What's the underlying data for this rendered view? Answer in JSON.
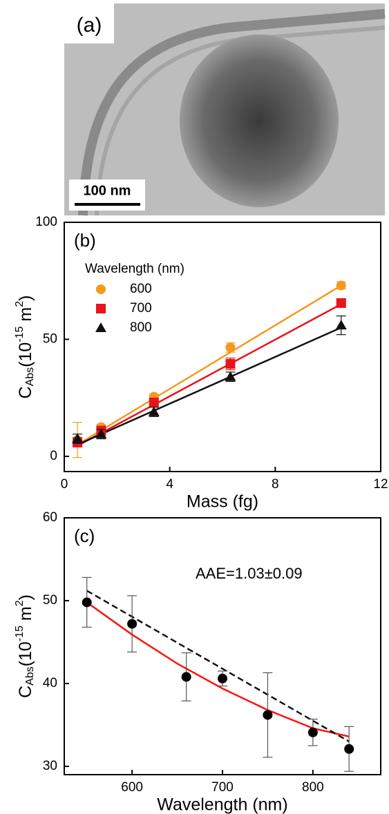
{
  "image_panel": {
    "label": "(a)",
    "scale_bar": "100 nm"
  },
  "chart_data": [
    {
      "type": "scatter",
      "panel_label": "(b)",
      "x_label": "Mass (fg)",
      "y_label": {
        "symbol": "C",
        "sub": "Abs",
        "open": "(10",
        "exp": "-15",
        "unit": " m",
        "unit_exp": "2",
        "close": ")"
      },
      "xlim": [
        0,
        12
      ],
      "ylim": [
        -6.5,
        100
      ],
      "xticks": [
        0,
        4,
        8,
        12
      ],
      "yticks": [
        0,
        50,
        100
      ],
      "legend_title": "Wavelength (nm)",
      "series": [
        {
          "name": "600",
          "color": "#f39a1e",
          "marker": "circle",
          "x": [
            0.5,
            1.4,
            3.4,
            6.3,
            10.5
          ],
          "values": [
            7,
            12.5,
            25.5,
            46.5,
            73
          ],
          "errors": [
            7.5,
            1,
            1,
            2,
            1.5
          ]
        },
        {
          "name": "700",
          "color": "#e8141c",
          "marker": "square",
          "x": [
            0.5,
            1.4,
            3.4,
            6.3,
            10.5
          ],
          "values": [
            6,
            11,
            23,
            39.5,
            65.5
          ],
          "errors": [
            2,
            1.5,
            1.5,
            2.5,
            1.5
          ]
        },
        {
          "name": "800",
          "color": "#111111",
          "marker": "triangle",
          "x": [
            0.5,
            1.4,
            3.4,
            6.3,
            10.5
          ],
          "values": [
            7.5,
            9.5,
            19,
            34,
            56
          ],
          "errors": [
            2,
            2,
            2,
            2,
            4
          ]
        }
      ],
      "fit_lines": [
        {
          "color": "#f39a1e",
          "dashed": false,
          "x": [
            0.5,
            10.5
          ],
          "values": [
            5,
            73
          ]
        },
        {
          "color": "#e8141c",
          "dashed": false,
          "x": [
            0.5,
            10.5
          ],
          "values": [
            4.5,
            65
          ]
        },
        {
          "color": "#111111",
          "dashed": false,
          "x": [
            0.5,
            10.5
          ],
          "values": [
            5,
            55
          ]
        }
      ]
    },
    {
      "type": "scatter",
      "panel_label": "(c)",
      "x_label": "Wavelength (nm)",
      "y_label": {
        "symbol": "C",
        "sub": "Abs",
        "open": "(10",
        "exp": "-15",
        "unit": " m",
        "unit_exp": "2",
        "close": ")"
      },
      "xlim": [
        525,
        875
      ],
      "ylim": [
        29,
        60
      ],
      "xticks": [
        600,
        700,
        800
      ],
      "yticks": [
        30,
        40,
        50,
        60
      ],
      "annotation": "AAE=1.03±0.09",
      "series": [
        {
          "color": "#000000",
          "error_color": "#555555",
          "marker": "circle",
          "x": [
            550,
            600,
            660,
            700,
            750,
            800,
            840
          ],
          "values": [
            49.8,
            47.2,
            40.8,
            40.6,
            36.2,
            34.1,
            32.1
          ],
          "errors": [
            3,
            3.4,
            2.9,
            0.9,
            5.1,
            1.6,
            2.7
          ]
        }
      ],
      "fit_lines": [
        {
          "color": "#ff1010",
          "dashed": false,
          "x": [
            550,
            600,
            650,
            700,
            750,
            800,
            840
          ],
          "values": [
            49.8,
            45.9,
            42.4,
            39.4,
            36.8,
            34.6,
            33.6
          ]
        },
        {
          "color": "#111111",
          "dashed": true,
          "x": [
            550,
            840
          ],
          "values": [
            51.2,
            33.0
          ]
        }
      ]
    }
  ]
}
